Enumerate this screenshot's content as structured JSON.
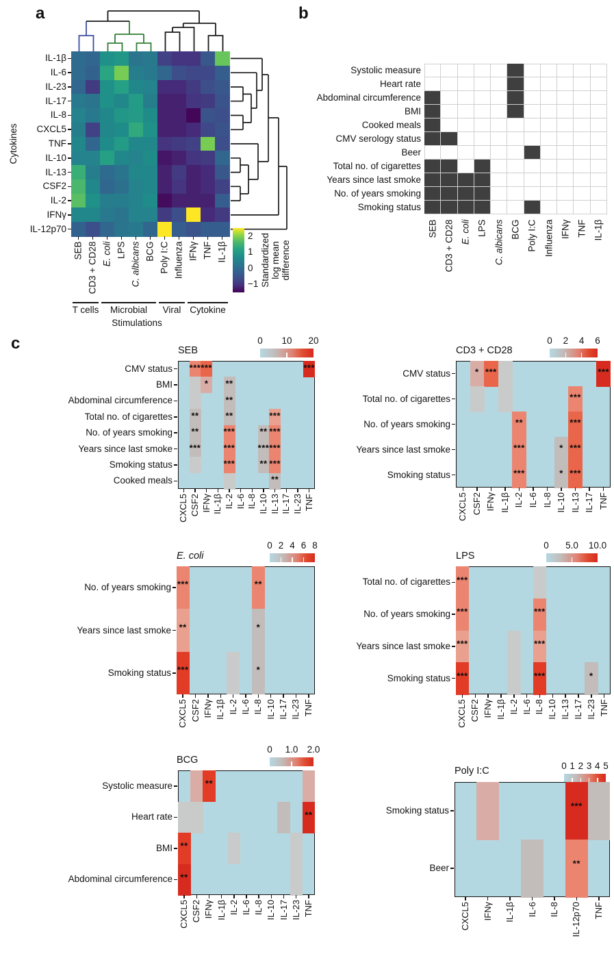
{
  "figure_labels": {
    "a": "a",
    "b": "b",
    "c": "c"
  },
  "colors": {
    "c_bg": "#b4d8e2",
    "c_palette": {
      "LG": "#c9cbca",
      "G": "#c2bcba",
      "P": "#d9ada6",
      "LS": "#e9a08e",
      "S": "#ec8570",
      "O": "#e9664a",
      "R": "#e23c27",
      "DR": "#d62b1e"
    },
    "b_fill": "#3f3f3f",
    "b_grid": "#cfcfcf",
    "dendro": {
      "blue": "#3c4da0",
      "green": "#2f7e33",
      "black": "#1a1a1a"
    },
    "viridis": [
      "#440154",
      "#46307e",
      "#3d4e8a",
      "#32638e",
      "#28788e",
      "#1f8d89",
      "#27a384",
      "#4cb86c",
      "#8ed645",
      "#fde725"
    ]
  },
  "chart_data": [
    {
      "id": "a",
      "type": "heatmap",
      "panel": "a",
      "ylabel": "Cytokines",
      "rows": [
        "IL-1β",
        "IL-6",
        "IL-23",
        "IL-17",
        "IL-8",
        "CXCL5",
        "TNF",
        "IL-10",
        "IL-13",
        "CSF2",
        "IL-2",
        "IFNγ",
        "IL-12p70"
      ],
      "cols": [
        "SEB",
        "CD3 + CD28",
        "E. coli",
        "LPS",
        "C. albicans",
        "BCG",
        "Poly I:C",
        "Influenza",
        "IFNγ",
        "TNF",
        "IL-1β"
      ],
      "italic_cols": [
        2,
        4
      ],
      "vmin": -1.5,
      "vmax": 2.5,
      "values": [
        [
          0.0,
          -0.1,
          0.8,
          0.9,
          0.2,
          0.3,
          -0.8,
          -1.0,
          -1.0,
          -0.4,
          1.8
        ],
        [
          0.0,
          -0.2,
          1.2,
          1.9,
          0.4,
          0.3,
          -0.1,
          -0.6,
          -0.7,
          -0.7,
          -0.3
        ],
        [
          -0.1,
          -0.9,
          0.8,
          1.1,
          0.6,
          0.5,
          -1.1,
          -1.1,
          -0.9,
          -0.6,
          -0.4
        ],
        [
          0.3,
          0.2,
          0.8,
          0.6,
          1.0,
          0.4,
          -1.2,
          -1.2,
          -1.0,
          -0.9,
          -0.5
        ],
        [
          0.5,
          0.3,
          0.6,
          0.9,
          1.0,
          0.7,
          -1.2,
          -1.2,
          -1.45,
          -0.5,
          -0.6
        ],
        [
          0.4,
          -0.8,
          0.6,
          0.7,
          1.3,
          0.8,
          -1.2,
          -1.2,
          -1.1,
          -0.7,
          -0.5
        ],
        [
          0.6,
          -0.1,
          0.7,
          1.0,
          0.6,
          0.6,
          -1.0,
          -0.9,
          -0.8,
          1.9,
          -0.6
        ],
        [
          0.5,
          0.5,
          1.1,
          0.6,
          0.5,
          0.7,
          -1.3,
          -1.2,
          -1.0,
          -0.9,
          -0.1
        ],
        [
          1.4,
          0.4,
          0.0,
          0.2,
          0.6,
          0.6,
          -1.2,
          -0.9,
          -1.2,
          -1.1,
          -0.4
        ],
        [
          1.6,
          0.6,
          -0.1,
          0.1,
          0.5,
          0.6,
          -1.2,
          -1.0,
          -1.2,
          -1.1,
          -0.8
        ],
        [
          1.7,
          0.8,
          0.4,
          0.4,
          0.5,
          0.7,
          -1.4,
          -1.2,
          -1.2,
          -1.2,
          -0.3
        ],
        [
          0.6,
          0.6,
          0.3,
          0.2,
          0.5,
          0.5,
          -0.9,
          -0.6,
          2.5,
          -1.1,
          -0.9
        ],
        [
          -0.2,
          -0.6,
          -0.1,
          0.2,
          0.3,
          -0.1,
          2.5,
          -0.3,
          -0.5,
          -0.3,
          -0.3
        ]
      ],
      "colorbar": {
        "ticks": [
          {
            "label": "2",
            "value": 2
          },
          {
            "label": "1",
            "value": 1
          },
          {
            "label": "0",
            "value": 0
          },
          {
            "label": "−1",
            "value": -1
          }
        ],
        "label": "Standardized\nlog mean\ndifference"
      },
      "groups": [
        {
          "label": "T cells",
          "from": 0,
          "to": 1
        },
        {
          "label": "Microbial",
          "from": 2,
          "to": 5
        },
        {
          "label": "Viral",
          "from": 6,
          "to": 7
        },
        {
          "label": "Cytokine",
          "from": 8,
          "to": 10
        }
      ],
      "group_axis_label": "Stimulations"
    },
    {
      "id": "b",
      "type": "binary-heatmap",
      "panel": "b",
      "rows": [
        "Systolic measure",
        "Heart rate",
        "Abdominal circumference",
        "BMI",
        "Cooked meals",
        "CMV serology status",
        "Beer",
        "Total no. of cigarettes",
        "Years since last smoke",
        "No. of years smoking",
        "Smoking status"
      ],
      "cols": [
        "SEB",
        "CD3 + CD28",
        "E. coli",
        "LPS",
        "C. albicans",
        "BCG",
        "Poly I:C",
        "Influenza",
        "IFNγ",
        "TNF",
        "IL-1β"
      ],
      "italic_cols": [
        2,
        4
      ],
      "filled": [
        [
          5
        ],
        [
          5
        ],
        [
          0,
          5
        ],
        [
          0,
          5
        ],
        [
          0
        ],
        [
          0,
          1
        ],
        [
          6
        ],
        [
          0,
          1,
          3
        ],
        [
          0,
          1,
          2,
          3
        ],
        [
          0,
          1,
          2,
          3
        ],
        [
          0,
          1,
          2,
          3,
          6
        ]
      ]
    },
    {
      "id": "seb",
      "type": "heatmap-annotated",
      "panel": "c",
      "title": "SEB",
      "title_italic": false,
      "scale_ticks": [
        "0",
        "10",
        "20"
      ],
      "rows": [
        "CMV status",
        "BMI",
        "Abdominal circumference",
        "Total no. of cigarettes",
        "No. of years smoking",
        "Years since last smoke",
        "Smoking status",
        "Cooked meals"
      ],
      "cols": [
        "CXCL5",
        "CSF2",
        "IFNγ",
        "IL-1β",
        "IL-2",
        "IL-6",
        "IL-8",
        "IL-10",
        "IL-13",
        "IL-17",
        "IL-23",
        "TNF"
      ],
      "cells": [
        {
          "r": 0,
          "c": 1,
          "k": "S",
          "s": "***"
        },
        {
          "r": 0,
          "c": 2,
          "k": "O",
          "s": "***"
        },
        {
          "r": 0,
          "c": 11,
          "k": "DR",
          "s": "***"
        },
        {
          "r": 1,
          "c": 1,
          "k": "LG"
        },
        {
          "r": 1,
          "c": 2,
          "k": "P",
          "s": "*"
        },
        {
          "r": 1,
          "c": 4,
          "k": "G",
          "s": "**"
        },
        {
          "r": 2,
          "c": 1,
          "k": "LG"
        },
        {
          "r": 2,
          "c": 4,
          "k": "G",
          "s": "**"
        },
        {
          "r": 3,
          "c": 1,
          "k": "G",
          "s": "**"
        },
        {
          "r": 3,
          "c": 4,
          "k": "G",
          "s": "**"
        },
        {
          "r": 3,
          "c": 8,
          "k": "LS",
          "s": "***"
        },
        {
          "r": 4,
          "c": 1,
          "k": "G",
          "s": "**"
        },
        {
          "r": 4,
          "c": 4,
          "k": "S",
          "s": "***"
        },
        {
          "r": 4,
          "c": 7,
          "k": "G",
          "s": "**"
        },
        {
          "r": 4,
          "c": 8,
          "k": "S",
          "s": "***"
        },
        {
          "r": 5,
          "c": 1,
          "k": "G",
          "s": "***"
        },
        {
          "r": 5,
          "c": 4,
          "k": "S",
          "s": "***"
        },
        {
          "r": 5,
          "c": 7,
          "k": "G",
          "s": "***"
        },
        {
          "r": 5,
          "c": 8,
          "k": "S",
          "s": "***"
        },
        {
          "r": 6,
          "c": 1,
          "k": "LG"
        },
        {
          "r": 6,
          "c": 4,
          "k": "S",
          "s": "***"
        },
        {
          "r": 6,
          "c": 7,
          "k": "G",
          "s": "**"
        },
        {
          "r": 6,
          "c": 8,
          "k": "S",
          "s": "***"
        },
        {
          "r": 7,
          "c": 4,
          "k": "LG"
        },
        {
          "r": 7,
          "c": 8,
          "k": "G",
          "s": "**"
        }
      ]
    },
    {
      "id": "cd3cd28",
      "type": "heatmap-annotated",
      "panel": "c",
      "title": "CD3 + CD28",
      "title_italic": false,
      "scale_ticks": [
        "0",
        "2",
        "4",
        "6"
      ],
      "rows": [
        "CMV status",
        "Total no. of cigarettes",
        "No. of years smoking",
        "Years since last smoke",
        "Smoking status"
      ],
      "cols": [
        "CXCL5",
        "CSF2",
        "IFNγ",
        "IL-1β",
        "IL-2",
        "IL-6",
        "IL-8",
        "IL-10",
        "IL-13",
        "IL-17",
        "TNF"
      ],
      "cells": [
        {
          "r": 0,
          "c": 1,
          "k": "P",
          "s": "*"
        },
        {
          "r": 0,
          "c": 2,
          "k": "O",
          "s": "***"
        },
        {
          "r": 0,
          "c": 3,
          "k": "LG"
        },
        {
          "r": 0,
          "c": 10,
          "k": "DR",
          "s": "***"
        },
        {
          "r": 1,
          "c": 1,
          "k": "LG"
        },
        {
          "r": 1,
          "c": 3,
          "k": "LG"
        },
        {
          "r": 1,
          "c": 8,
          "k": "S",
          "s": "***"
        },
        {
          "r": 2,
          "c": 4,
          "k": "S",
          "s": "**"
        },
        {
          "r": 2,
          "c": 8,
          "k": "O",
          "s": "***"
        },
        {
          "r": 3,
          "c": 4,
          "k": "S",
          "s": "***"
        },
        {
          "r": 3,
          "c": 7,
          "k": "G",
          "s": "*"
        },
        {
          "r": 3,
          "c": 8,
          "k": "O",
          "s": "***"
        },
        {
          "r": 4,
          "c": 4,
          "k": "S",
          "s": "***"
        },
        {
          "r": 4,
          "c": 7,
          "k": "G",
          "s": "*"
        },
        {
          "r": 4,
          "c": 8,
          "k": "O",
          "s": "***"
        }
      ]
    },
    {
      "id": "ecoli",
      "type": "heatmap-annotated",
      "panel": "c",
      "title": "E. coli",
      "title_italic": true,
      "scale_ticks": [
        "0",
        "2",
        "4",
        "6",
        "8"
      ],
      "rows": [
        "No. of years smoking",
        "Years since last smoke",
        "Smoking status"
      ],
      "cols": [
        "CXCL5",
        "CSF2",
        "IFNγ",
        "IL-1β",
        "IL-2",
        "IL-6",
        "IL-8",
        "IL-10",
        "IL-17",
        "IL-23",
        "TNF"
      ],
      "cells": [
        {
          "r": 0,
          "c": 0,
          "k": "S",
          "s": "***"
        },
        {
          "r": 0,
          "c": 6,
          "k": "S",
          "s": "**"
        },
        {
          "r": 1,
          "c": 0,
          "k": "LS",
          "s": "**"
        },
        {
          "r": 1,
          "c": 6,
          "k": "G",
          "s": "*"
        },
        {
          "r": 2,
          "c": 0,
          "k": "R",
          "s": "***"
        },
        {
          "r": 2,
          "c": 4,
          "k": "LG"
        },
        {
          "r": 2,
          "c": 6,
          "k": "G",
          "s": "*"
        }
      ]
    },
    {
      "id": "lps",
      "type": "heatmap-annotated",
      "panel": "c",
      "title": "LPS",
      "title_italic": false,
      "scale_ticks": [
        "0",
        "5.0",
        "10.0"
      ],
      "rows": [
        "Total no. of cigarettes",
        "No. of years smoking",
        "Years since last smoke",
        "Smoking status"
      ],
      "cols": [
        "CXCL5",
        "CSF2",
        "IFNγ",
        "IL-1β",
        "IL-2",
        "IL-6",
        "IL-8",
        "IL-10",
        "IL-13",
        "IL-17",
        "IL-23",
        "TNF"
      ],
      "cells": [
        {
          "r": 0,
          "c": 0,
          "k": "S",
          "s": "***"
        },
        {
          "r": 0,
          "c": 6,
          "k": "LG"
        },
        {
          "r": 1,
          "c": 0,
          "k": "S",
          "s": "***"
        },
        {
          "r": 1,
          "c": 6,
          "k": "S",
          "s": "***"
        },
        {
          "r": 2,
          "c": 0,
          "k": "LS",
          "s": "***"
        },
        {
          "r": 2,
          "c": 4,
          "k": "LG"
        },
        {
          "r": 2,
          "c": 6,
          "k": "LS",
          "s": "***"
        },
        {
          "r": 3,
          "c": 0,
          "k": "R",
          "s": "***"
        },
        {
          "r": 3,
          "c": 4,
          "k": "LG"
        },
        {
          "r": 3,
          "c": 6,
          "k": "R",
          "s": "***"
        },
        {
          "r": 3,
          "c": 10,
          "k": "G",
          "s": "*"
        }
      ]
    },
    {
      "id": "bcg",
      "type": "heatmap-annotated",
      "panel": "c",
      "title": "BCG",
      "title_italic": false,
      "scale_ticks": [
        "0",
        "1.0",
        "2.0"
      ],
      "rows": [
        "Systolic measure",
        "Heart rate",
        "BMI",
        "Abdominal circumference"
      ],
      "cols": [
        "CXCL5",
        "CSF2",
        "IFNγ",
        "IL-1β",
        "IL-2",
        "IL-6",
        "IL-8",
        "IL-10",
        "IL-17",
        "IL-23",
        "TNF"
      ],
      "cells": [
        {
          "r": 0,
          "c": 1,
          "k": "P"
        },
        {
          "r": 0,
          "c": 2,
          "k": "R",
          "s": "**"
        },
        {
          "r": 0,
          "c": 10,
          "k": "P"
        },
        {
          "r": 1,
          "c": 0,
          "k": "LG"
        },
        {
          "r": 1,
          "c": 1,
          "k": "LG"
        },
        {
          "r": 1,
          "c": 8,
          "k": "G"
        },
        {
          "r": 1,
          "c": 10,
          "k": "DR",
          "s": "**"
        },
        {
          "r": 2,
          "c": 0,
          "k": "R",
          "s": "**"
        },
        {
          "r": 2,
          "c": 4,
          "k": "LG"
        },
        {
          "r": 2,
          "c": 9,
          "k": "LG"
        },
        {
          "r": 3,
          "c": 0,
          "k": "DR",
          "s": "**"
        },
        {
          "r": 3,
          "c": 9,
          "k": "LG"
        }
      ]
    },
    {
      "id": "polyic",
      "type": "heatmap-annotated",
      "panel": "c",
      "title": "Poly I:C",
      "title_italic": false,
      "scale_ticks": [
        "0",
        "1",
        "2",
        "3",
        "4",
        "5"
      ],
      "rows": [
        "Smoking status",
        "Beer"
      ],
      "cols": [
        "CXCL5",
        "IFNγ",
        "IL-1β",
        "IL-6",
        "IL-8",
        "IL-12p70",
        "TNF"
      ],
      "cells": [
        {
          "r": 0,
          "c": 1,
          "k": "P"
        },
        {
          "r": 0,
          "c": 5,
          "k": "DR",
          "s": "***"
        },
        {
          "r": 0,
          "c": 6,
          "k": "G"
        },
        {
          "r": 1,
          "c": 3,
          "k": "G"
        },
        {
          "r": 1,
          "c": 5,
          "k": "S",
          "s": "**"
        }
      ]
    }
  ]
}
